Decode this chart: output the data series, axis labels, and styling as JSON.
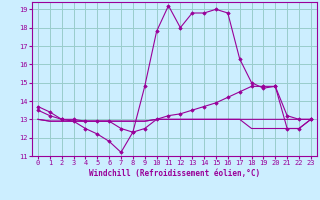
{
  "xlabel": "Windchill (Refroidissement éolien,°C)",
  "bg_color": "#cceeff",
  "grid_color": "#99cccc",
  "line_color": "#990099",
  "xlim": [
    -0.5,
    23.5
  ],
  "ylim": [
    11,
    19.4
  ],
  "yticks": [
    11,
    12,
    13,
    14,
    15,
    16,
    17,
    18,
    19
  ],
  "xticks": [
    0,
    1,
    2,
    3,
    4,
    5,
    6,
    7,
    8,
    9,
    10,
    11,
    12,
    13,
    14,
    15,
    16,
    17,
    18,
    19,
    20,
    21,
    22,
    23
  ],
  "s1_x": [
    0,
    1,
    2,
    3,
    4,
    5,
    6,
    7,
    8,
    9,
    10,
    11,
    12,
    13,
    14,
    15,
    16,
    17,
    18,
    19,
    20,
    21,
    22,
    23
  ],
  "s1_y": [
    13.7,
    13.4,
    13.0,
    12.9,
    12.5,
    12.2,
    11.8,
    11.2,
    12.3,
    14.8,
    17.8,
    19.2,
    18.0,
    18.8,
    18.8,
    19.0,
    18.8,
    16.3,
    15.0,
    14.7,
    14.8,
    13.2,
    13.0,
    13.0
  ],
  "s2_x": [
    0,
    1,
    2,
    3,
    4,
    5,
    6,
    7,
    8,
    9,
    10,
    11,
    12,
    13,
    14,
    15,
    16,
    17,
    18,
    19,
    20,
    21,
    22,
    23
  ],
  "s2_y": [
    13.0,
    12.9,
    12.9,
    12.9,
    12.9,
    12.9,
    12.9,
    12.9,
    12.9,
    12.9,
    13.0,
    13.0,
    13.0,
    13.0,
    13.0,
    13.0,
    13.0,
    13.0,
    13.0,
    13.0,
    13.0,
    13.0,
    13.0,
    13.0
  ],
  "s3_x": [
    0,
    1,
    2,
    3,
    4,
    5,
    6,
    7,
    8,
    9,
    10,
    11,
    12,
    13,
    14,
    15,
    16,
    17,
    18,
    19,
    20,
    21,
    22,
    23
  ],
  "s3_y": [
    13.5,
    13.2,
    13.0,
    13.0,
    12.9,
    12.9,
    12.9,
    12.5,
    12.3,
    12.5,
    13.0,
    13.2,
    13.3,
    13.5,
    13.7,
    13.9,
    14.2,
    14.5,
    14.8,
    14.8,
    14.8,
    12.5,
    12.5,
    13.0
  ],
  "s4_x": [
    0,
    1,
    2,
    3,
    4,
    5,
    6,
    7,
    8,
    9,
    10,
    11,
    12,
    13,
    14,
    15,
    16,
    17,
    18,
    19,
    20,
    21,
    22,
    23
  ],
  "s4_y": [
    13.0,
    12.9,
    12.9,
    12.9,
    12.9,
    12.9,
    12.9,
    12.9,
    12.9,
    12.9,
    13.0,
    13.0,
    13.0,
    13.0,
    13.0,
    13.0,
    13.0,
    13.0,
    12.5,
    12.5,
    12.5,
    12.5,
    12.5,
    13.0
  ]
}
